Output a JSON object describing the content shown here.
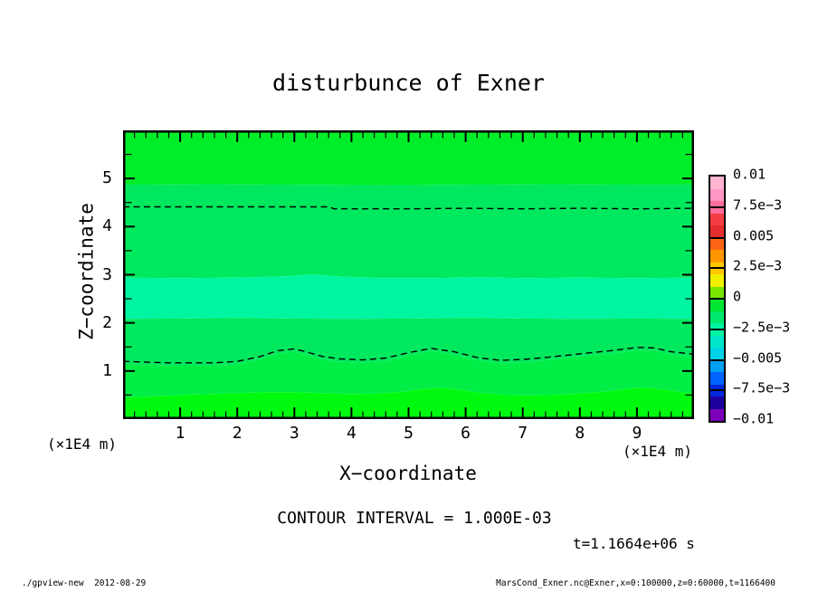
{
  "title": "disturbunce of Exner",
  "axes": {
    "x": {
      "label": "X−coordinate",
      "unit": "(×1E4 m)",
      "tick_values": [
        1,
        2,
        3,
        4,
        5,
        6,
        7,
        8,
        9
      ],
      "range": [
        0,
        10
      ],
      "minor_step": 0.2
    },
    "z": {
      "label": "Z−coordinate",
      "unit": "(×1E4 m)",
      "tick_values": [
        1,
        2,
        3,
        4,
        5
      ],
      "range": [
        0,
        6
      ],
      "minor_step": 0.5
    }
  },
  "annotations": {
    "contour_interval": "CONTOUR INTERVAL = 1.000E-03",
    "time": "t=1.1664e+06 s"
  },
  "footer": {
    "left": "./gpview-new  2012-08-29",
    "right": "MarsCond_Exner.nc@Exner,x=0:100000,z=0:60000,t=1166400"
  },
  "chart_data": {
    "type": "heatmap",
    "subtype": "filled-contour",
    "title": "disturbunce of Exner",
    "xlabel": "X−coordinate (×1E4 m)",
    "ylabel": "Z−coordinate (×1E4 m)",
    "x_range": [
      0,
      10
    ],
    "z_range": [
      0,
      6
    ],
    "x_range_meters": "x=0:100000",
    "z_range_meters": "z=0:60000",
    "time_seconds": 1166400,
    "contour_interval": 0.001,
    "grid": false,
    "legend_position": "right-colorbar",
    "band_colors": [
      "#00ee2a",
      "#00e95e",
      "#00f5a0",
      "#00e95e",
      "#00ee46",
      "#00fa0f"
    ],
    "band_boundaries_z": [
      [
        [
          0,
          4.87
        ],
        [
          1.5,
          4.88
        ],
        [
          3,
          4.87
        ],
        [
          4.5,
          4.86
        ],
        [
          6,
          4.87
        ],
        [
          7.5,
          4.88
        ],
        [
          9,
          4.87
        ],
        [
          10,
          4.87
        ]
      ],
      [
        [
          0,
          2.94
        ],
        [
          1,
          2.93
        ],
        [
          2,
          2.94
        ],
        [
          2.9,
          2.97
        ],
        [
          3.3,
          3.01
        ],
        [
          3.7,
          2.97
        ],
        [
          4.5,
          2.93
        ],
        [
          5.5,
          2.93
        ],
        [
          6.2,
          2.95
        ],
        [
          7,
          2.93
        ],
        [
          8,
          2.94
        ],
        [
          9,
          2.93
        ],
        [
          10,
          2.94
        ]
      ],
      [
        [
          0,
          2.08
        ],
        [
          1,
          2.09
        ],
        [
          2,
          2.1
        ],
        [
          3,
          2.09
        ],
        [
          4,
          2.08
        ],
        [
          5,
          2.09
        ],
        [
          6,
          2.1
        ],
        [
          7,
          2.09
        ],
        [
          8,
          2.08
        ],
        [
          9,
          2.09
        ],
        [
          10,
          2.08
        ]
      ],
      [
        [
          0,
          1.14
        ],
        [
          0.8,
          1.11
        ],
        [
          1.6,
          1.11
        ],
        [
          2.0,
          1.14
        ],
        [
          2.4,
          1.24
        ],
        [
          2.7,
          1.36
        ],
        [
          3.0,
          1.4
        ],
        [
          3.2,
          1.34
        ],
        [
          3.5,
          1.24
        ],
        [
          3.8,
          1.19
        ],
        [
          4.2,
          1.17
        ],
        [
          4.6,
          1.21
        ],
        [
          5.0,
          1.32
        ],
        [
          5.4,
          1.41
        ],
        [
          5.8,
          1.34
        ],
        [
          6.2,
          1.22
        ],
        [
          6.6,
          1.16
        ],
        [
          7.0,
          1.18
        ],
        [
          7.4,
          1.22
        ],
        [
          7.8,
          1.27
        ],
        [
          8.2,
          1.32
        ],
        [
          8.6,
          1.37
        ],
        [
          9.0,
          1.43
        ],
        [
          9.3,
          1.42
        ],
        [
          9.6,
          1.34
        ],
        [
          10,
          1.29
        ]
      ],
      [
        [
          0,
          0.45
        ],
        [
          0.5,
          0.47
        ],
        [
          1.0,
          0.5
        ],
        [
          1.5,
          0.52
        ],
        [
          2.0,
          0.54
        ],
        [
          2.5,
          0.56
        ],
        [
          3.0,
          0.56
        ],
        [
          3.5,
          0.54
        ],
        [
          4.0,
          0.52
        ],
        [
          4.5,
          0.53
        ],
        [
          5.0,
          0.58
        ],
        [
          5.3,
          0.63
        ],
        [
          5.6,
          0.65
        ],
        [
          5.9,
          0.61
        ],
        [
          6.3,
          0.54
        ],
        [
          6.7,
          0.5
        ],
        [
          7.1,
          0.49
        ],
        [
          7.5,
          0.5
        ],
        [
          8.0,
          0.53
        ],
        [
          8.5,
          0.58
        ],
        [
          8.9,
          0.64
        ],
        [
          9.2,
          0.65
        ],
        [
          9.5,
          0.61
        ],
        [
          9.8,
          0.56
        ],
        [
          10,
          0.53
        ]
      ]
    ],
    "dashed_contours": [
      [
        [
          0,
          4.41
        ],
        [
          1,
          4.41
        ],
        [
          2,
          4.41
        ],
        [
          3,
          4.41
        ],
        [
          3.6,
          4.41
        ],
        [
          3.7,
          4.37
        ],
        [
          5,
          4.37
        ],
        [
          6,
          4.38
        ],
        [
          7,
          4.37
        ],
        [
          8,
          4.38
        ],
        [
          9,
          4.37
        ],
        [
          10,
          4.38
        ]
      ],
      [
        [
          0,
          1.2
        ],
        [
          0.8,
          1.17
        ],
        [
          1.6,
          1.17
        ],
        [
          2.0,
          1.2
        ],
        [
          2.4,
          1.3
        ],
        [
          2.7,
          1.42
        ],
        [
          3.0,
          1.46
        ],
        [
          3.2,
          1.4
        ],
        [
          3.5,
          1.3
        ],
        [
          3.8,
          1.25
        ],
        [
          4.2,
          1.23
        ],
        [
          4.6,
          1.27
        ],
        [
          5.0,
          1.38
        ],
        [
          5.4,
          1.47
        ],
        [
          5.8,
          1.4
        ],
        [
          6.2,
          1.28
        ],
        [
          6.6,
          1.22
        ],
        [
          7.0,
          1.24
        ],
        [
          7.4,
          1.28
        ],
        [
          7.8,
          1.33
        ],
        [
          8.2,
          1.38
        ],
        [
          8.6,
          1.43
        ],
        [
          9.0,
          1.49
        ],
        [
          9.3,
          1.48
        ],
        [
          9.6,
          1.4
        ],
        [
          10,
          1.35
        ]
      ]
    ],
    "colorbar": {
      "min": -0.01,
      "max": 0.01,
      "labels": [
        "0.01",
        "7.5e−3",
        "0.005",
        "2.5e−3",
        "0",
        "−2.5e−3",
        "−0.005",
        "−7.5e−3",
        "−0.01"
      ],
      "colors": [
        "#ffb4d2",
        "#ff96c3",
        "#ff6e9b",
        "#f53c46",
        "#e62d2d",
        "#ff6414",
        "#ff9600",
        "#ffc800",
        "#f0f000",
        "#78e600",
        "#00e632",
        "#00e96e",
        "#00f5a0",
        "#00e6c8",
        "#00d2e6",
        "#00a0f5",
        "#0064ff",
        "#0028dc",
        "#1e00a0",
        "#7d00b9"
      ]
    }
  }
}
